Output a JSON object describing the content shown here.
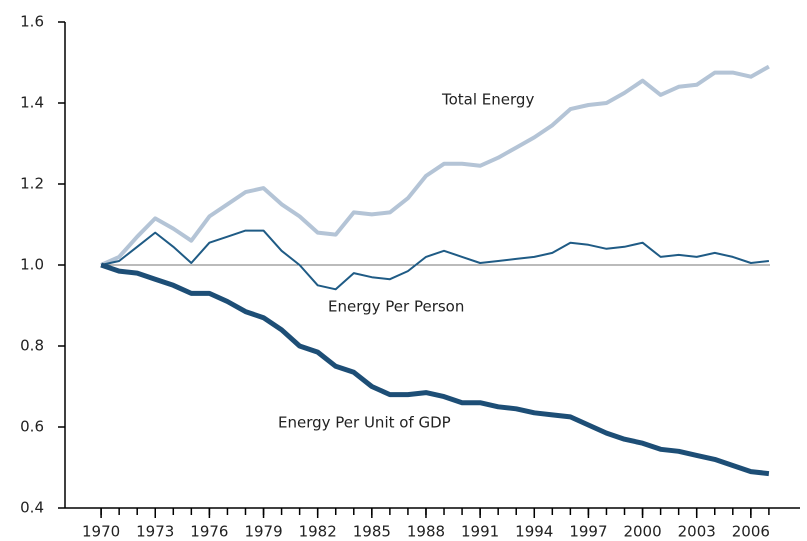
{
  "chart_data": {
    "type": "line",
    "x": [
      1970,
      1971,
      1972,
      1973,
      1974,
      1975,
      1976,
      1977,
      1978,
      1979,
      1980,
      1981,
      1982,
      1983,
      1984,
      1985,
      1986,
      1987,
      1988,
      1989,
      1990,
      1991,
      1992,
      1993,
      1994,
      1995,
      1996,
      1997,
      1998,
      1999,
      2000,
      2001,
      2002,
      2003,
      2004,
      2005,
      2006,
      2007
    ],
    "series": [
      {
        "name": "Total Energy",
        "color": "#b4c4d6",
        "values": [
          1.0,
          1.02,
          1.07,
          1.115,
          1.09,
          1.06,
          1.12,
          1.15,
          1.18,
          1.19,
          1.15,
          1.12,
          1.08,
          1.075,
          1.13,
          1.125,
          1.13,
          1.165,
          1.22,
          1.25,
          1.25,
          1.245,
          1.265,
          1.29,
          1.315,
          1.345,
          1.385,
          1.395,
          1.4,
          1.425,
          1.455,
          1.42,
          1.44,
          1.445,
          1.475,
          1.475,
          1.465,
          1.49
        ]
      },
      {
        "name": "Energy Per Person",
        "color": "#1f5b85",
        "values": [
          1.0,
          1.01,
          1.045,
          1.08,
          1.045,
          1.005,
          1.055,
          1.07,
          1.085,
          1.085,
          1.035,
          1.0,
          0.95,
          0.94,
          0.98,
          0.97,
          0.965,
          0.985,
          1.02,
          1.035,
          1.02,
          1.005,
          1.01,
          1.015,
          1.02,
          1.03,
          1.055,
          1.05,
          1.04,
          1.045,
          1.055,
          1.02,
          1.025,
          1.02,
          1.03,
          1.02,
          1.005,
          1.01
        ]
      },
      {
        "name": "Energy Per Unit of GDP",
        "color": "#1d4e76",
        "values": [
          1.0,
          0.985,
          0.98,
          0.965,
          0.95,
          0.93,
          0.93,
          0.91,
          0.885,
          0.87,
          0.84,
          0.8,
          0.785,
          0.75,
          0.735,
          0.7,
          0.68,
          0.68,
          0.685,
          0.675,
          0.66,
          0.66,
          0.65,
          0.645,
          0.635,
          0.63,
          0.625,
          0.605,
          0.585,
          0.57,
          0.56,
          0.545,
          0.54,
          0.53,
          0.52,
          0.505,
          0.49,
          0.485
        ]
      }
    ],
    "xlim": [
      1968,
      2009
    ],
    "xticks": [
      1970,
      1973,
      1976,
      1979,
      1982,
      1985,
      1988,
      1991,
      1994,
      1997,
      2000,
      2003,
      2006
    ],
    "minor_xticks": [
      1970,
      1971,
      1972,
      1973,
      1974,
      1975,
      1976,
      1977,
      1978,
      1979,
      1980,
      1981,
      1982,
      1983,
      1984,
      1985,
      1986,
      1987,
      1988,
      1989,
      1990,
      1991,
      1992,
      1993,
      1994,
      1995,
      1996,
      1997,
      1998,
      1999,
      2000,
      2001,
      2002,
      2003,
      2004,
      2005,
      2006,
      2007
    ],
    "ylim": [
      0.4,
      1.6
    ],
    "yticks": [
      0.4,
      0.6,
      0.8,
      {
        "value": 1,
        "label": "1.0"
      },
      1.2,
      1.4,
      1.6
    ],
    "reference_line": 1,
    "reference_color": "#777777"
  }
}
